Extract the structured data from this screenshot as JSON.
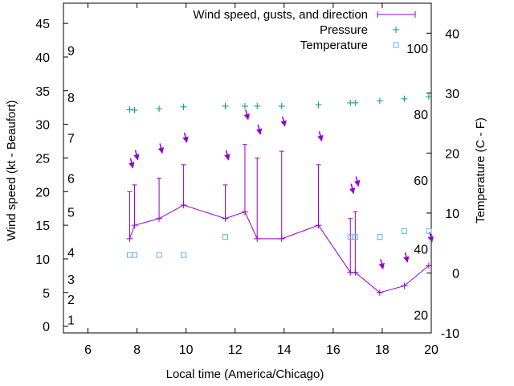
{
  "chart_data": {
    "type": "line",
    "xlabel": "Local time (America/Chicago)",
    "ylabel": "Wind speed (kt - Beaufort)",
    "y2label": "Temperature (C - F)",
    "xlim": [
      5,
      20
    ],
    "ylim": [
      -1,
      48
    ],
    "y2lim": [
      -10,
      45
    ],
    "x_ticks": [
      "6",
      "8",
      "10",
      "12",
      "14",
      "16",
      "18",
      "20"
    ],
    "y_ticks": [
      "0",
      "5",
      "10",
      "15",
      "20",
      "25",
      "30",
      "35",
      "40",
      "45"
    ],
    "y2_ticks": [
      "-10",
      "0",
      "10",
      "20",
      "30",
      "40"
    ],
    "beaufort_labels": [
      {
        "text": "1",
        "y": 1
      },
      {
        "text": "2",
        "y": 4
      },
      {
        "text": "3",
        "y": 7
      },
      {
        "text": "4",
        "y": 11
      },
      {
        "text": "5",
        "y": 17
      },
      {
        "text": "6",
        "y": 22
      },
      {
        "text": "7",
        "y": 28
      },
      {
        "text": "8",
        "y": 34
      },
      {
        "text": "9",
        "y": 41
      }
    ],
    "fahrenheit_labels": [
      {
        "text": "20",
        "y2": -7
      },
      {
        "text": "40",
        "y2": 4
      },
      {
        "text": "60",
        "y2": 15.5
      },
      {
        "text": "80",
        "y2": 26.5
      },
      {
        "text": "100",
        "y2": 37.5
      }
    ],
    "legend_position": "top-right",
    "legend": [
      "Wind speed, gusts, and direction",
      "Pressure",
      "Temperature"
    ],
    "series": [
      {
        "name": "Wind speed, gusts, and direction",
        "color": "#9400d3",
        "x": [
          7.7,
          7.9,
          8.9,
          9.9,
          11.6,
          12.4,
          12.9,
          13.9,
          15.4,
          16.7,
          16.9,
          17.9,
          18.9,
          19.9
        ],
        "speed": [
          13,
          15,
          16,
          18,
          16,
          17,
          13,
          13,
          15,
          8,
          8,
          5,
          6,
          9
        ],
        "gust": [
          20,
          21,
          22,
          24,
          21,
          27,
          25,
          26,
          24,
          16,
          17,
          null,
          null,
          null
        ],
        "arrow_center": [
          24,
          25.2,
          26.2,
          27.8,
          25.2,
          31.2,
          29,
          30.2,
          28,
          20.2,
          21.3,
          9,
          10,
          13
        ]
      },
      {
        "name": "Pressure",
        "color": "#009e73",
        "marker": "+",
        "x": [
          7.7,
          7.9,
          8.9,
          9.9,
          11.6,
          12.4,
          12.9,
          13.9,
          15.4,
          16.7,
          16.9,
          17.9,
          18.9,
          19.9
        ],
        "y": [
          32.2,
          32.1,
          32.3,
          32.6,
          32.7,
          32.7,
          32.7,
          32.7,
          32.9,
          33.2,
          33.2,
          33.5,
          33.8,
          34.1
        ]
      },
      {
        "name": "Temperature",
        "color": "#56b4e9",
        "marker": "square",
        "x": [
          7.7,
          7.9,
          8.9,
          9.9,
          11.6,
          16.7,
          16.9,
          17.9,
          18.9,
          19.9
        ],
        "y2": [
          3,
          3,
          3,
          3,
          6,
          6,
          6,
          6,
          7,
          7
        ]
      }
    ]
  }
}
